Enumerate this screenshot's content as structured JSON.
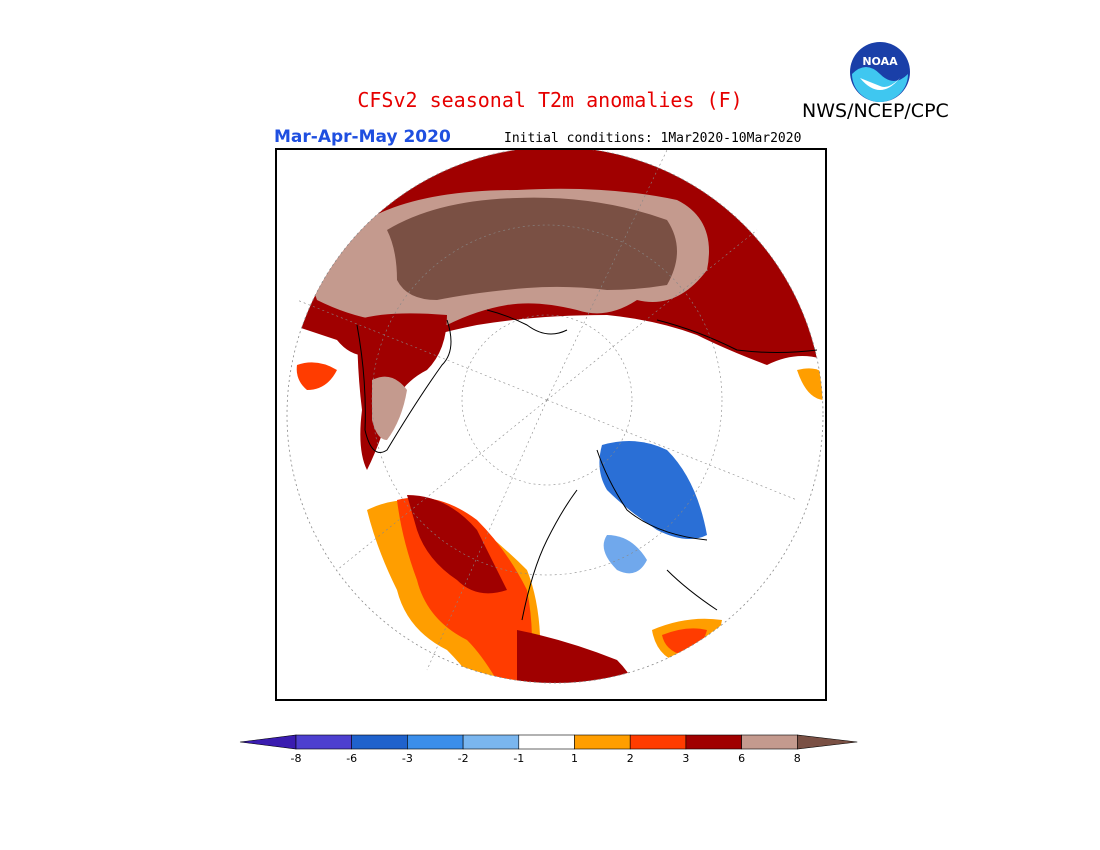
{
  "header": {
    "title": "CFSv2 seasonal T2m anomalies (F)",
    "agency": "NWS/NCEP/CPC",
    "logo_text": "NOAA",
    "season": "Mar-Apr-May 2020",
    "initial_conditions": "Initial conditions: 1Mar2020-10Mar2020"
  },
  "map": {
    "projection": "north-polar-stereographic",
    "variable": "2m temperature anomaly",
    "units": "F",
    "regions": [
      {
        "area": "Northern Siberia / Russian Arctic",
        "category": ">8",
        "color": "#7a5044"
      },
      {
        "area": "Siberia margin / Scandinavia fringe",
        "category": "6 to 8",
        "color": "#c49a8e"
      },
      {
        "area": "Eurasia southern band / Mongolia / China north",
        "category": "3 to 6",
        "color": "#a00000"
      },
      {
        "area": "Greenland coastal band",
        "category": "3 to 6",
        "color": "#a00000"
      },
      {
        "area": "Western North America / Alaska",
        "category": "1 to 6",
        "color": "#ff4000"
      },
      {
        "area": "Hudson Bay / Canadian Shield",
        "category": "-6 to -3",
        "color": "#2a6fd6"
      },
      {
        "area": "Labrador / Quebec",
        "category": "-3 to -2",
        "color": "#70a8ec"
      },
      {
        "area": "Eastern North America",
        "category": "1 to 3",
        "color": "#ff9e00"
      }
    ]
  },
  "colorbar": {
    "ticks": [
      "-8",
      "-6",
      "-3",
      "-2",
      "-1",
      "1",
      "2",
      "3",
      "6",
      "8"
    ],
    "colors": [
      "#3a1cb0",
      "#4d3fcf",
      "#1f62cc",
      "#3b8eea",
      "#7ab6ef",
      "#ffffff",
      "#ff9e00",
      "#ff3c00",
      "#a00000",
      "#c49a8e",
      "#7a5044"
    ]
  }
}
